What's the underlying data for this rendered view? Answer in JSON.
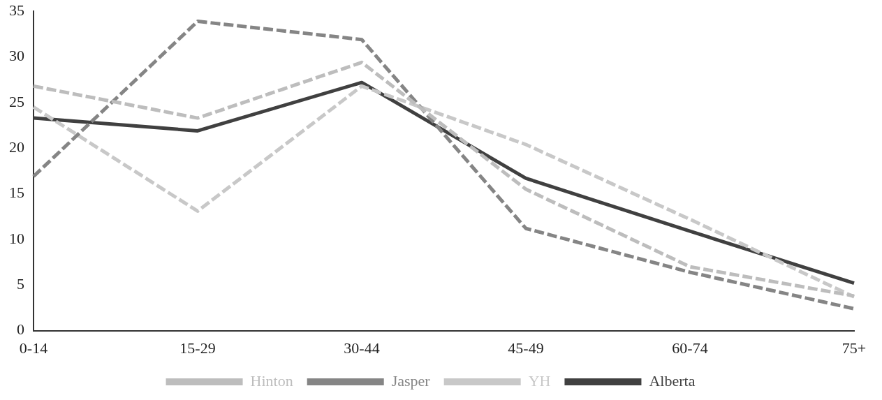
{
  "chart_data": {
    "type": "line",
    "categories": [
      "0-14",
      "15-29",
      "30-44",
      "45-49",
      "60-74",
      "75+"
    ],
    "series": [
      {
        "name": "Hinton",
        "color": "#bdbdbd",
        "line_style": "dashed",
        "values": [
          26.8,
          23.3,
          29.4,
          15.5,
          7.0,
          3.8
        ]
      },
      {
        "name": "Jasper",
        "color": "#858585",
        "line_style": "dashed",
        "values": [
          16.9,
          33.9,
          31.9,
          11.2,
          6.4,
          2.4
        ]
      },
      {
        "name": "YH",
        "color": "#c8c8c8",
        "line_style": "dashed",
        "values": [
          24.5,
          13.1,
          26.8,
          20.4,
          12.2,
          3.7
        ]
      },
      {
        "name": "Alberta",
        "color": "#404040",
        "line_style": "solid",
        "values": [
          23.3,
          21.9,
          27.2,
          16.7,
          10.9,
          5.2
        ]
      }
    ],
    "ylim": [
      0,
      35
    ],
    "yticks": [
      0,
      5,
      10,
      15,
      20,
      25,
      30,
      35
    ],
    "grid": false,
    "legend": "bottom",
    "marker": "none"
  }
}
